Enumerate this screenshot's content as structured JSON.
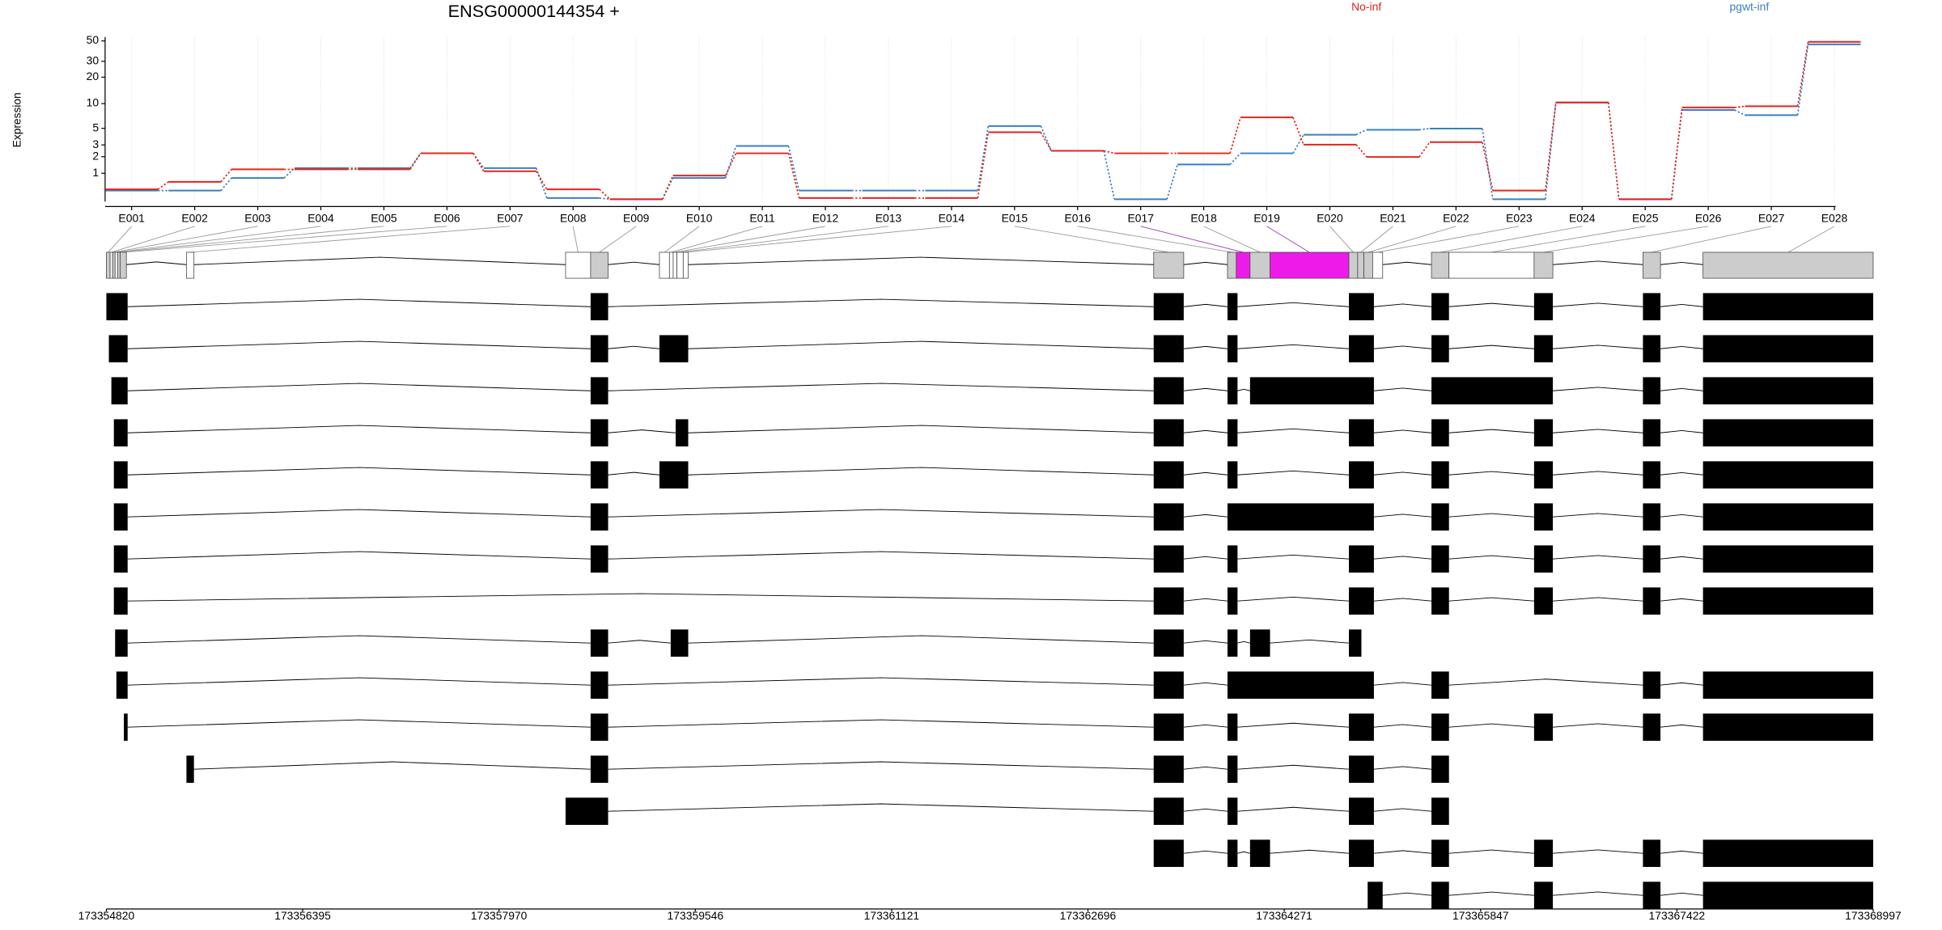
{
  "chart_data": {
    "type": "line",
    "title": "ENSG00000144354 +",
    "y_label": "Expression",
    "categories": [
      "E001",
      "E002",
      "E003",
      "E004",
      "E005",
      "E006",
      "E007",
      "E008",
      "E009",
      "E010",
      "E011",
      "E012",
      "E013",
      "E014",
      "E015",
      "E016",
      "E017",
      "E018",
      "E019",
      "E020",
      "E021",
      "E022",
      "E023",
      "E024",
      "E025",
      "E026",
      "E027",
      "E028"
    ],
    "series": [
      {
        "name": "No-inf",
        "color": "#e3241b",
        "values": [
          0.35,
          0.62,
          1.2,
          1.2,
          1.2,
          2.26,
          1.1,
          0.35,
          0.06,
          0.89,
          2.26,
          0.09,
          0.09,
          0.09,
          4.46,
          2.46,
          2.26,
          2.26,
          6.85,
          3.03,
          1.98,
          3.28,
          0.31,
          10.3,
          0.06,
          9,
          9.3,
          48.8
        ]
      },
      {
        "name": "pgwt-inf",
        "color": "#3a7fc1",
        "values": [
          0.31,
          0.31,
          0.78,
          1.27,
          1.27,
          2.26,
          1.27,
          0.09,
          0.06,
          0.78,
          2.9,
          0.31,
          0.31,
          0.31,
          5.35,
          2.46,
          0.06,
          1.48,
          2.26,
          4.13,
          4.8,
          4.97,
          0.06,
          10.3,
          0.06,
          8.4,
          7.3,
          45.9
        ]
      }
    ],
    "yscale": "log",
    "ylim": [
      0,
      55
    ],
    "yticks": [
      1,
      2,
      3,
      5,
      10,
      20,
      30,
      50
    ],
    "grid": true
  },
  "genomic_axis": {
    "xlim": [
      173354820,
      173368997
    ],
    "xticks": [
      173354820,
      173356395,
      173357970,
      173359546,
      173361121,
      173362696,
      173364271,
      173365847,
      173367422,
      173368997
    ]
  }
}
